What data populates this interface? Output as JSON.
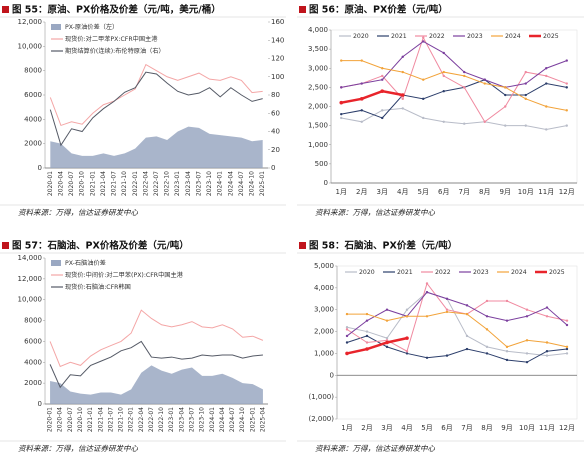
{
  "chart_data": [
    {
      "type": "line",
      "title": "图 55：原油、PX价格及价差（元/吨，美元/桶）",
      "source": "资料来源：万得，信达证券研发中心",
      "legend": "top-left",
      "grid": false,
      "rotate_x_labels": true,
      "categories": [
        "2020-01",
        "2020-04",
        "2020-07",
        "2020-10",
        "2021-01",
        "2021-04",
        "2021-07",
        "2021-10",
        "2022-01",
        "2022-04",
        "2022-07",
        "2022-10",
        "2023-01",
        "2023-04",
        "2023-07",
        "2023-10",
        "2024-01",
        "2024-04",
        "2024-07",
        "2024-10",
        "2025-01"
      ],
      "ylim": [
        0,
        12000
      ],
      "yticks": [
        0,
        2000,
        4000,
        6000,
        8000,
        {
          "value": 10000,
          "label": "10,000"
        },
        {
          "value": 12000,
          "label": "12,000"
        }
      ],
      "y2lim": [
        0,
        160
      ],
      "y2ticks": [
        0,
        20,
        40,
        60,
        80,
        100,
        120,
        140,
        160
      ],
      "series": [
        {
          "name": "PX-原油价差（左）",
          "type": "area",
          "color": "#9aa8c2",
          "values": [
            2200,
            2000,
            1200,
            1000,
            1000,
            1200,
            1000,
            1200,
            1600,
            2500,
            2600,
            2300,
            3000,
            3400,
            3300,
            2800,
            2700,
            2600,
            2500,
            2200,
            2300
          ]
        },
        {
          "name": "现货价:对二甲苯PX:CFR中国主港",
          "color": "#f4a6a6",
          "values": [
            5800,
            3500,
            3800,
            3600,
            4500,
            5200,
            5500,
            6000,
            6500,
            8500,
            8000,
            7500,
            7200,
            7500,
            7800,
            7300,
            7200,
            7500,
            7200,
            6200,
            6300
          ]
        },
        {
          "name": "期货结算价(连续):布伦特原油（右）",
          "color": "#555a66",
          "axis": "y2",
          "values": [
            64,
            25,
            43,
            40,
            55,
            65,
            73,
            83,
            88,
            105,
            103,
            93,
            84,
            80,
            82,
            88,
            78,
            88,
            80,
            73,
            76
          ]
        }
      ]
    },
    {
      "type": "line",
      "title": "图 56：原油、PX价差（元/吨）",
      "source": "资料来源：万得，信达证券研发中心",
      "legend": "top",
      "grid": false,
      "rotate_x_labels": false,
      "categories": [
        "1月",
        "2月",
        "3月",
        "4月",
        "5月",
        "6月",
        "7月",
        "8月",
        "9月",
        "10月",
        "11月",
        "12月"
      ],
      "ylim": [
        0,
        4000
      ],
      "yticks": [
        0,
        500,
        {
          "value": 1000,
          "label": "1,000"
        },
        {
          "value": 1500,
          "label": "1,500"
        },
        {
          "value": 2000,
          "label": "2,000"
        },
        {
          "value": 2500,
          "label": "2,500"
        },
        {
          "value": 3000,
          "label": "3,000"
        },
        {
          "value": 3500,
          "label": "3,500"
        },
        {
          "value": 4000,
          "label": "4,000"
        }
      ],
      "series": [
        {
          "name": "2020",
          "color": "#b8bcc8",
          "values": [
            1700,
            1600,
            1900,
            1950,
            1700,
            1600,
            1550,
            1600,
            1500,
            1500,
            1400,
            1500
          ]
        },
        {
          "name": "2021",
          "color": "#2c3e6b",
          "values": [
            1800,
            1900,
            1700,
            2300,
            2200,
            2400,
            2500,
            2700,
            2300,
            2300,
            2600,
            2500
          ]
        },
        {
          "name": "2022",
          "color": "#f08aa0",
          "values": [
            2500,
            2600,
            2800,
            2200,
            3800,
            2800,
            2500,
            1600,
            2000,
            2900,
            2800,
            2600
          ]
        },
        {
          "name": "2023",
          "color": "#7b3f9e",
          "values": [
            2500,
            2600,
            2700,
            3300,
            3700,
            3400,
            2900,
            2700,
            2500,
            2600,
            3000,
            3200
          ]
        },
        {
          "name": "2024",
          "color": "#f2a33a",
          "values": [
            3200,
            3200,
            3000,
            2900,
            2700,
            2900,
            2800,
            2600,
            2500,
            2200,
            2000,
            1900
          ]
        },
        {
          "name": "2025",
          "color": "#e8242b",
          "width": 2.5,
          "values": [
            2100,
            2200,
            2400,
            2300,
            null,
            null,
            null,
            null,
            null,
            null,
            null,
            null
          ]
        }
      ]
    },
    {
      "type": "line",
      "title": "图 57：石脑油、PX价格及价差（元/吨）",
      "source": "资料来源：万得，信达证券研发中心",
      "legend": "top-left",
      "grid": false,
      "rotate_x_labels": true,
      "categories": [
        "2020-01",
        "2020-04",
        "2020-07",
        "2020-10",
        "2021-01",
        "2021-04",
        "2021-07",
        "2021-10",
        "2022-01",
        "2022-04",
        "2022-07",
        "2022-10",
        "2023-01",
        "2023-04",
        "2023-07",
        "2023-10",
        "2024-01",
        "2024-04",
        "2024-07",
        "2024-10",
        "2025-01",
        "2025-04"
      ],
      "ylim": [
        0,
        14000
      ],
      "yticks": [
        0,
        2000,
        4000,
        6000,
        8000,
        {
          "value": 10000,
          "label": "10,000"
        },
        {
          "value": 12000,
          "label": "12,000"
        },
        {
          "value": 14000,
          "label": "14,000"
        }
      ],
      "series": [
        {
          "name": "PX-石脑油价差",
          "type": "area",
          "color": "#9aa8c2",
          "values": [
            2200,
            2000,
            1200,
            1000,
            900,
            1100,
            1100,
            900,
            1400,
            3000,
            3700,
            3200,
            2900,
            3300,
            3500,
            2700,
            2700,
            2900,
            2500,
            2000,
            1900,
            1400
          ]
        },
        {
          "name": "现货价:中间价:对二甲苯(PX):CFR中国主港",
          "color": "#f4a6a6",
          "values": [
            6000,
            3600,
            4000,
            3700,
            4600,
            5200,
            5600,
            6000,
            6800,
            9000,
            8200,
            7600,
            7400,
            7600,
            7900,
            7400,
            7300,
            7600,
            7200,
            6400,
            6500,
            6100
          ]
        },
        {
          "name": "现货价:石脑油:CFR韩国",
          "color": "#555a66",
          "values": [
            3800,
            1600,
            2800,
            2700,
            3700,
            4100,
            4500,
            5100,
            5400,
            6000,
            4500,
            4400,
            4500,
            4300,
            4400,
            4700,
            4600,
            4700,
            4700,
            4400,
            4600,
            4700
          ]
        }
      ]
    },
    {
      "type": "line",
      "title": "图 58：石脑油、PX价差（元/吨）",
      "source": "资料来源：万得，信达证券研发中心",
      "legend": "top",
      "grid": false,
      "rotate_x_labels": false,
      "categories": [
        "1月",
        "2月",
        "3月",
        "4月",
        "5月",
        "6月",
        "7月",
        "8月",
        "9月",
        "10月",
        "11月",
        "12月"
      ],
      "ylim": [
        -2000,
        5000
      ],
      "yticks": [
        {
          "value": -2000,
          "label": "(2,000)"
        },
        {
          "value": -1000,
          "label": "(1,000)"
        },
        0,
        {
          "value": 1000,
          "label": "1,000"
        },
        {
          "value": 2000,
          "label": "2,000"
        },
        {
          "value": 3000,
          "label": "3,000"
        },
        {
          "value": 4000,
          "label": "4,000"
        },
        {
          "value": 5000,
          "label": "5,000"
        }
      ],
      "series": [
        {
          "name": "2020",
          "color": "#b8bcc8",
          "values": [
            2200,
            2000,
            1700,
            3000,
            3800,
            3500,
            1800,
            1300,
            1100,
            1000,
            900,
            1000
          ]
        },
        {
          "name": "2021",
          "color": "#2c3e6b",
          "values": [
            1500,
            1800,
            1300,
            1000,
            800,
            900,
            1200,
            1000,
            700,
            600,
            1100,
            1200
          ]
        },
        {
          "name": "2022",
          "color": "#f08aa0",
          "values": [
            2100,
            1500,
            1600,
            1100,
            4200,
            3000,
            2800,
            3400,
            3400,
            3000,
            2700,
            2500
          ]
        },
        {
          "name": "2023",
          "color": "#7b3f9e",
          "values": [
            1800,
            2500,
            3000,
            2700,
            3800,
            3500,
            3200,
            2700,
            2500,
            2700,
            3100,
            2300
          ]
        },
        {
          "name": "2024",
          "color": "#f2a33a",
          "values": [
            2800,
            2800,
            2500,
            2700,
            2700,
            2900,
            2800,
            2100,
            1300,
            1600,
            1500,
            1300
          ]
        },
        {
          "name": "2025",
          "color": "#e8242b",
          "width": 2.5,
          "values": [
            1000,
            1200,
            1500,
            1700,
            null,
            null,
            null,
            null,
            null,
            null,
            null,
            null
          ]
        }
      ]
    }
  ]
}
